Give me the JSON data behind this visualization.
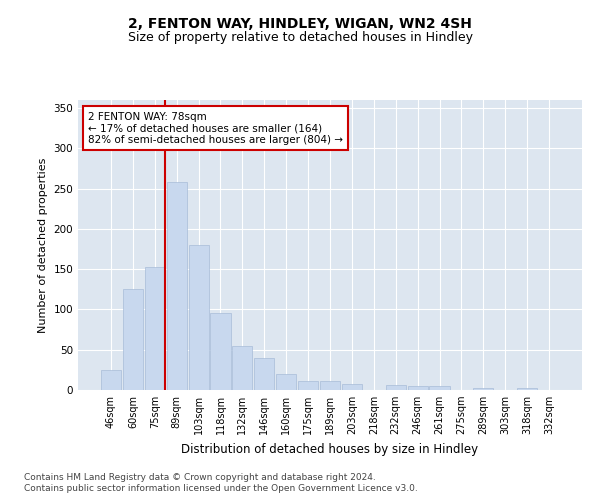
{
  "title": "2, FENTON WAY, HINDLEY, WIGAN, WN2 4SH",
  "subtitle": "Size of property relative to detached houses in Hindley",
  "xlabel": "Distribution of detached houses by size in Hindley",
  "ylabel": "Number of detached properties",
  "categories": [
    "46sqm",
    "60sqm",
    "75sqm",
    "89sqm",
    "103sqm",
    "118sqm",
    "132sqm",
    "146sqm",
    "160sqm",
    "175sqm",
    "189sqm",
    "203sqm",
    "218sqm",
    "232sqm",
    "246sqm",
    "261sqm",
    "275sqm",
    "289sqm",
    "303sqm",
    "318sqm",
    "332sqm"
  ],
  "bar_values": [
    25,
    125,
    153,
    258,
    180,
    95,
    55,
    40,
    20,
    11,
    11,
    8,
    0,
    6,
    5,
    5,
    0,
    3,
    0,
    3,
    0
  ],
  "bar_color": "#c8d8ee",
  "bar_edge_color": "#a8bcd8",
  "vertical_line_color": "#cc0000",
  "annotation_text": "2 FENTON WAY: 78sqm\n← 17% of detached houses are smaller (164)\n82% of semi-detached houses are larger (804) →",
  "annotation_box_facecolor": "#ffffff",
  "annotation_box_edgecolor": "#cc0000",
  "ylim": [
    0,
    360
  ],
  "yticks": [
    0,
    50,
    100,
    150,
    200,
    250,
    300,
    350
  ],
  "plot_bg_color": "#dde6f0",
  "footer_line1": "Contains HM Land Registry data © Crown copyright and database right 2024.",
  "footer_line2": "Contains public sector information licensed under the Open Government Licence v3.0."
}
